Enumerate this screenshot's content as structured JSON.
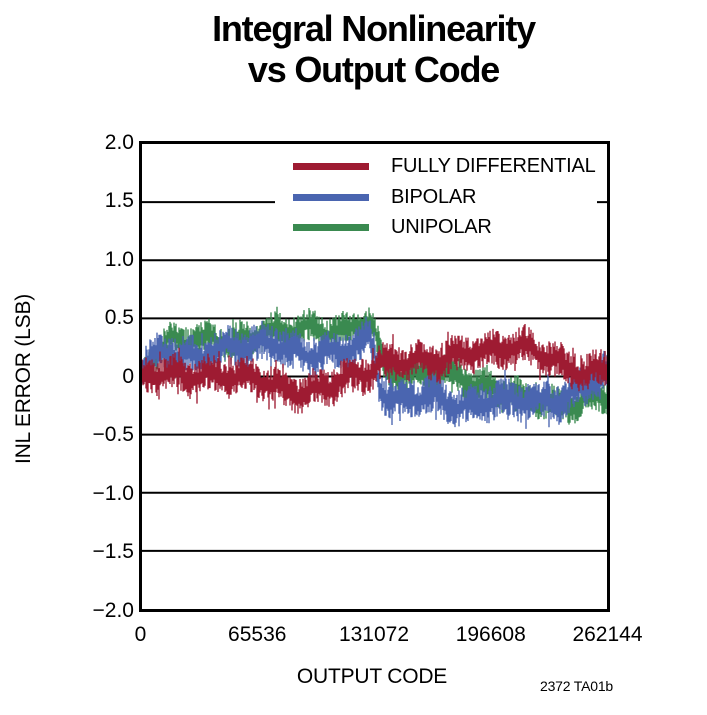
{
  "title": {
    "line1": "Integral Nonlinearity",
    "line2": "vs Output Code"
  },
  "watermark": "2372 TA01b",
  "chart_data": {
    "type": "line",
    "title": "Integral Nonlinearity vs Output Code",
    "xlabel": "OUTPUT CODE",
    "ylabel": "INL ERROR (LSB)",
    "xlim": [
      0,
      262144
    ],
    "ylim": [
      -2.0,
      2.0
    ],
    "x_ticks": [
      0,
      65536,
      131072,
      196608,
      262144
    ],
    "x_tick_labels": [
      "0",
      "65536",
      "131072",
      "196608",
      "262144"
    ],
    "y_ticks": [
      2.0,
      1.5,
      1.0,
      0.5,
      0,
      -0.5,
      -1.0,
      -1.5,
      -2.0
    ],
    "y_tick_labels": [
      "2.0",
      "1.5",
      "1.0",
      "0.5",
      "0",
      "−0.5",
      "−1.0",
      "−1.5",
      "−2.0"
    ],
    "grid": "horizontal-only",
    "legend_position": "top-inside",
    "axis_color": "#000000",
    "series": [
      {
        "id": "fully-differential",
        "name": "FULLY DIFFERENTIAL",
        "color": "#9e1b32",
        "style": "noise-band",
        "halfwidth": 0.16,
        "z": 3,
        "keyframes": [
          [
            0,
            0.02
          ],
          [
            10000,
            0.08
          ],
          [
            20000,
            0.05
          ],
          [
            35000,
            -0.02
          ],
          [
            50000,
            -0.06
          ],
          [
            65536,
            -0.03
          ],
          [
            80000,
            -0.08
          ],
          [
            95000,
            -0.1
          ],
          [
            110000,
            -0.05
          ],
          [
            125000,
            -0.02
          ],
          [
            131072,
            0.02
          ],
          [
            140000,
            0.1
          ],
          [
            155000,
            0.16
          ],
          [
            170000,
            0.2
          ],
          [
            185000,
            0.22
          ],
          [
            200000,
            0.18
          ],
          [
            215000,
            0.22
          ],
          [
            230000,
            0.17
          ],
          [
            240000,
            0.12
          ],
          [
            250000,
            0.07
          ],
          [
            262144,
            0.1
          ]
        ]
      },
      {
        "id": "bipolar",
        "name": "BIPOLAR",
        "color": "#4a65b0",
        "style": "noise-band",
        "halfwidth": 0.17,
        "z": 2,
        "keyframes": [
          [
            0,
            0.05
          ],
          [
            8000,
            0.18
          ],
          [
            16000,
            0.25
          ],
          [
            30000,
            0.2
          ],
          [
            45000,
            0.25
          ],
          [
            60000,
            0.2
          ],
          [
            75000,
            0.25
          ],
          [
            90000,
            0.21
          ],
          [
            105000,
            0.25
          ],
          [
            118000,
            0.27
          ],
          [
            128000,
            0.3
          ],
          [
            131072,
            0.18
          ],
          [
            134000,
            -0.12
          ],
          [
            140000,
            -0.28
          ],
          [
            150000,
            -0.22
          ],
          [
            165000,
            -0.17
          ],
          [
            180000,
            -0.22
          ],
          [
            195000,
            -0.17
          ],
          [
            210000,
            -0.22
          ],
          [
            222000,
            -0.28
          ],
          [
            235000,
            -0.24
          ],
          [
            245000,
            -0.14
          ],
          [
            253000,
            0.0
          ],
          [
            262144,
            0.1
          ]
        ]
      },
      {
        "id": "unipolar",
        "name": "UNIPOLAR",
        "color": "#3a8a50",
        "style": "noise-band",
        "halfwidth": 0.14,
        "z": 1,
        "keyframes": [
          [
            0,
            -0.05
          ],
          [
            6000,
            0.1
          ],
          [
            15000,
            0.28
          ],
          [
            28000,
            0.33
          ],
          [
            40000,
            0.38
          ],
          [
            52000,
            0.33
          ],
          [
            65536,
            0.36
          ],
          [
            78000,
            0.34
          ],
          [
            90000,
            0.38
          ],
          [
            103000,
            0.4
          ],
          [
            115000,
            0.44
          ],
          [
            124000,
            0.5
          ],
          [
            129000,
            0.52
          ],
          [
            131072,
            0.42
          ],
          [
            136000,
            0.1
          ],
          [
            145000,
            0.0
          ],
          [
            160000,
            -0.03
          ],
          [
            175000,
            0.0
          ],
          [
            190000,
            -0.05
          ],
          [
            205000,
            -0.08
          ],
          [
            218000,
            -0.18
          ],
          [
            230000,
            -0.27
          ],
          [
            242000,
            -0.3
          ],
          [
            252000,
            -0.22
          ],
          [
            262144,
            -0.15
          ]
        ]
      }
    ]
  }
}
